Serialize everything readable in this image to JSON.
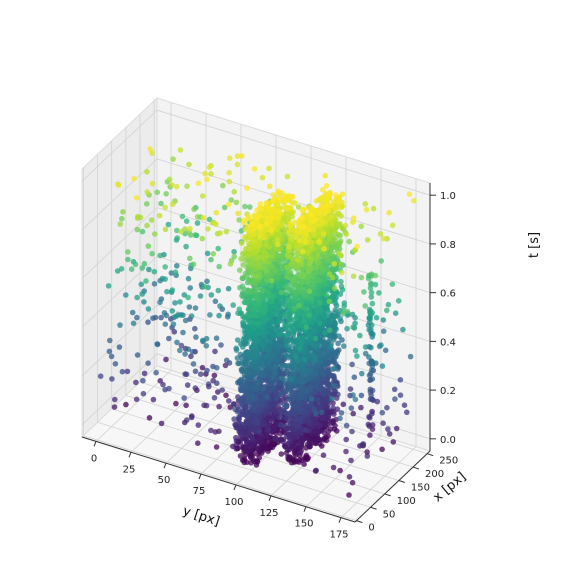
{
  "chart_data": {
    "type": "scatter",
    "projection": "3d",
    "colormap": "viridis",
    "color_by": "t",
    "grid": true,
    "xlabel": "y [px]",
    "ylabel": "x [px]",
    "zlabel": "t [s]",
    "xlim": [
      -10,
      185
    ],
    "ylim": [
      -5,
      260
    ],
    "zlim": [
      -0.05,
      1.05
    ],
    "x_ticks": [
      "0",
      "25",
      "50",
      "75",
      "100",
      "125",
      "150",
      "175"
    ],
    "y_ticks": [
      "0",
      "50",
      "100",
      "150",
      "200",
      "250"
    ],
    "z_ticks": [
      "0.0",
      "0.2",
      "0.4",
      "0.6",
      "0.8",
      "1.0"
    ],
    "point_groups": [
      {
        "name": "",
        "shape": "dense sheet",
        "y_range": [
          95,
          110
        ],
        "x_range": [
          20,
          150
        ],
        "t_range": [
          0,
          1
        ],
        "approx_points": 2400
      },
      {
        "name": "",
        "shape": "dense sheet",
        "y_range": [
          120,
          135
        ],
        "x_range": [
          60,
          200
        ],
        "t_range": [
          0,
          1
        ],
        "approx_points": 2400
      },
      {
        "name": "",
        "shape": "vertical column",
        "y_at": 160,
        "x_at": 175,
        "t_range": [
          0.05,
          0.75
        ],
        "approx_points": 60
      },
      {
        "name": "",
        "shape": "scattered noise",
        "y_range": [
          0,
          180
        ],
        "x_range": [
          0,
          250
        ],
        "t_range": [
          0,
          1
        ],
        "approx_points": 700
      }
    ]
  }
}
